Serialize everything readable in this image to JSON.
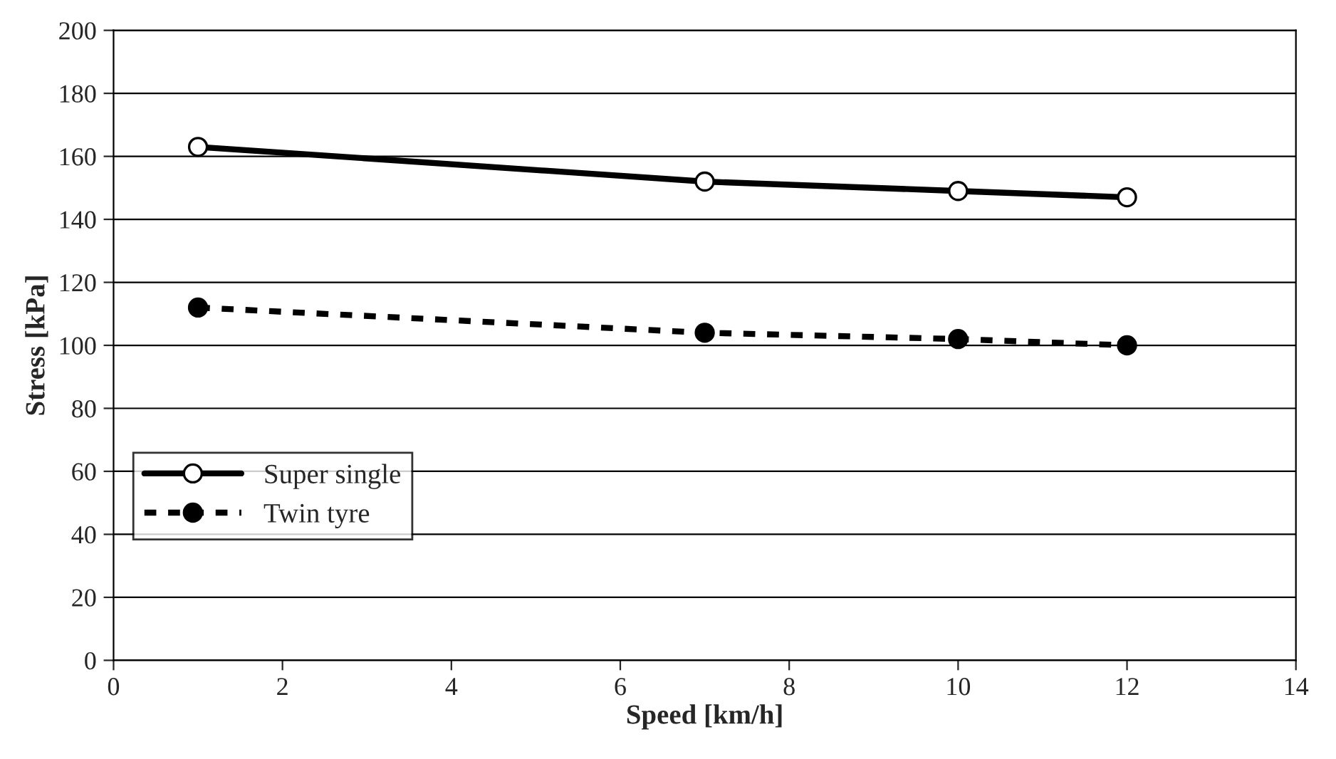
{
  "chart_data": {
    "type": "line",
    "xlabel": "Speed [km/h]",
    "ylabel": "Stress [kPa]",
    "x": [
      1,
      7,
      10,
      12
    ],
    "series": [
      {
        "name": "Super single",
        "color": "#000000",
        "values": [
          163,
          152,
          149,
          147
        ],
        "marker": "circle",
        "line_style": "solid"
      },
      {
        "name": "Twin tyre",
        "color": "#000000",
        "values": [
          112,
          104,
          102,
          100
        ],
        "marker": "circle",
        "line_style": "dashed"
      }
    ],
    "xlim": [
      0,
      14
    ],
    "xticks": [
      0,
      2,
      4,
      6,
      8,
      10,
      12,
      14
    ],
    "ylim": [
      0,
      200
    ],
    "yticks": [
      0,
      20,
      40,
      60,
      80,
      100,
      120,
      140,
      160,
      180,
      200
    ],
    "grid": "y",
    "legend": "lower left"
  }
}
